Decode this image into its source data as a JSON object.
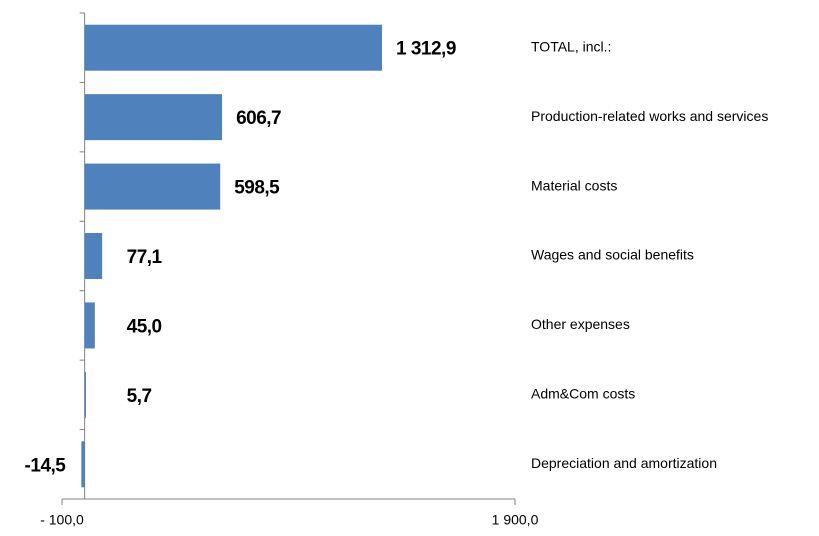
{
  "chart_data": {
    "type": "hbar",
    "categories": [
      "TOTAL, incl.:",
      "Production-related works and services",
      "Material costs",
      "Wages and social benefits",
      "Other expenses",
      "Adm&Com costs",
      "Depreciation and amortization"
    ],
    "values": [
      1312.9,
      606.7,
      598.5,
      77.1,
      45.0,
      5.7,
      -14.5
    ],
    "value_labels": [
      "1 312,9",
      "606,7",
      "598,5",
      "77,1",
      "45,0",
      "5,7",
      "-14,5"
    ],
    "color": "#4f81bd",
    "xlim": [
      -100,
      1900
    ],
    "xticks": [
      {
        "value": -100,
        "label": "- 100,0"
      },
      {
        "value": 1900,
        "label": "1 900,0"
      }
    ]
  }
}
